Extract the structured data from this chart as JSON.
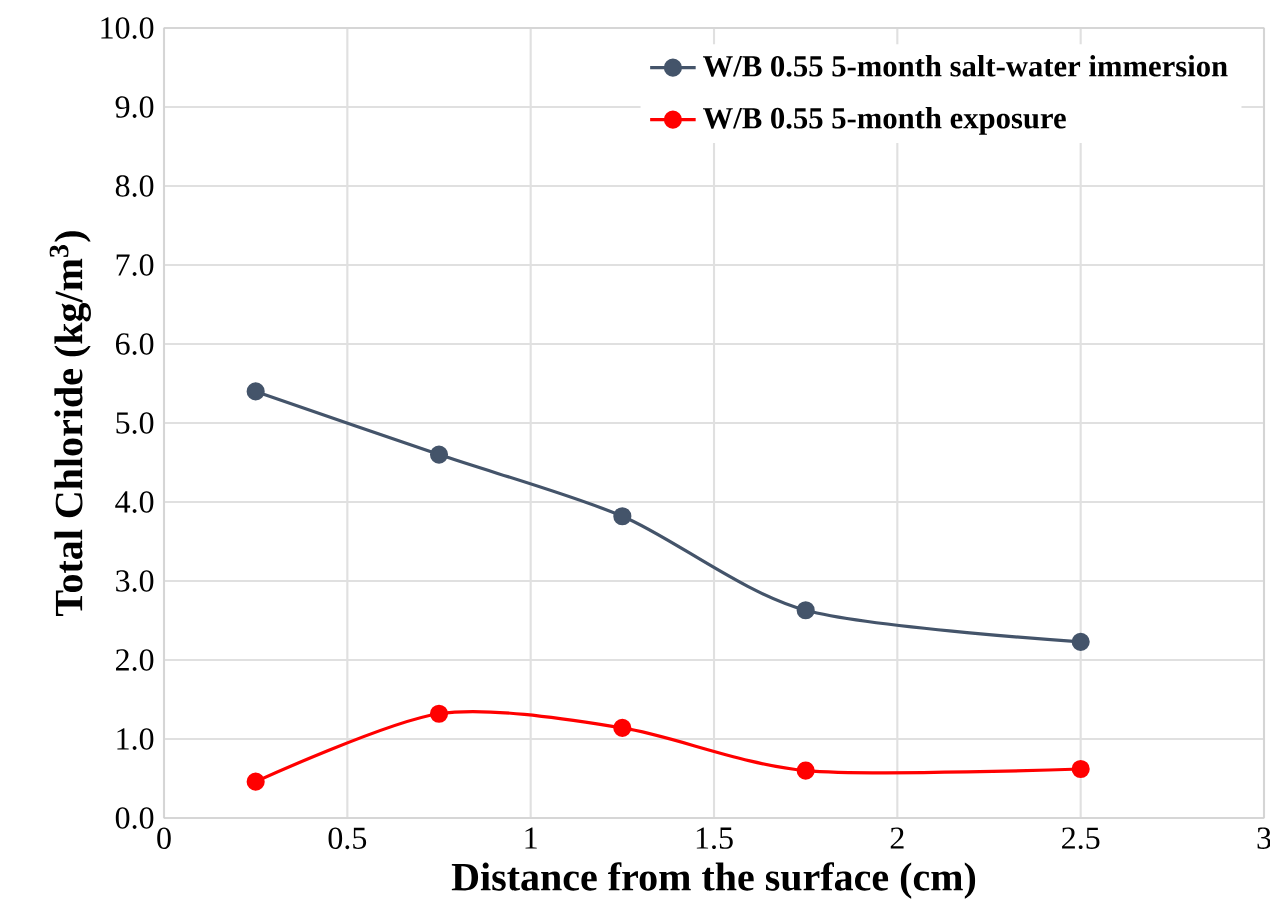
{
  "chart_data": {
    "type": "line",
    "xlabel": "Distance from the surface (cm)",
    "ylabel": "Total Chloride (kg/m$^{3}$)",
    "xlim": [
      0,
      3
    ],
    "xticks": [
      0,
      0.5,
      1,
      1.5,
      2,
      2.5,
      3
    ],
    "ylim": [
      0,
      10
    ],
    "yticks": [
      {
        "value": 0,
        "label": "0.0"
      },
      {
        "value": 1,
        "label": "1.0"
      },
      {
        "value": 2,
        "label": "2.0"
      },
      {
        "value": 3,
        "label": "3.0"
      },
      {
        "value": 4,
        "label": "4.0"
      },
      {
        "value": 5,
        "label": "5.0"
      },
      {
        "value": 6,
        "label": "6.0"
      },
      {
        "value": 7,
        "label": "7.0"
      },
      {
        "value": 8,
        "label": "8.0"
      },
      {
        "value": 9,
        "label": "9.0"
      },
      {
        "value": 10,
        "label": "10.0"
      }
    ],
    "x": [
      0.25,
      0.75,
      1.25,
      1.75,
      2.5
    ],
    "series": [
      {
        "name": "W/B 0.55 5-month salt-water immersion",
        "color": "#44546a",
        "values": [
          5.4,
          4.6,
          3.82,
          2.63,
          2.23
        ]
      },
      {
        "name": "W/B 0.55 5-month exposure",
        "color": "#ff0000",
        "values": [
          0.46,
          1.32,
          1.14,
          0.6,
          0.62
        ]
      }
    ],
    "grid": true,
    "legend": "top right",
    "marker": "circle",
    "line_style": "solid"
  }
}
